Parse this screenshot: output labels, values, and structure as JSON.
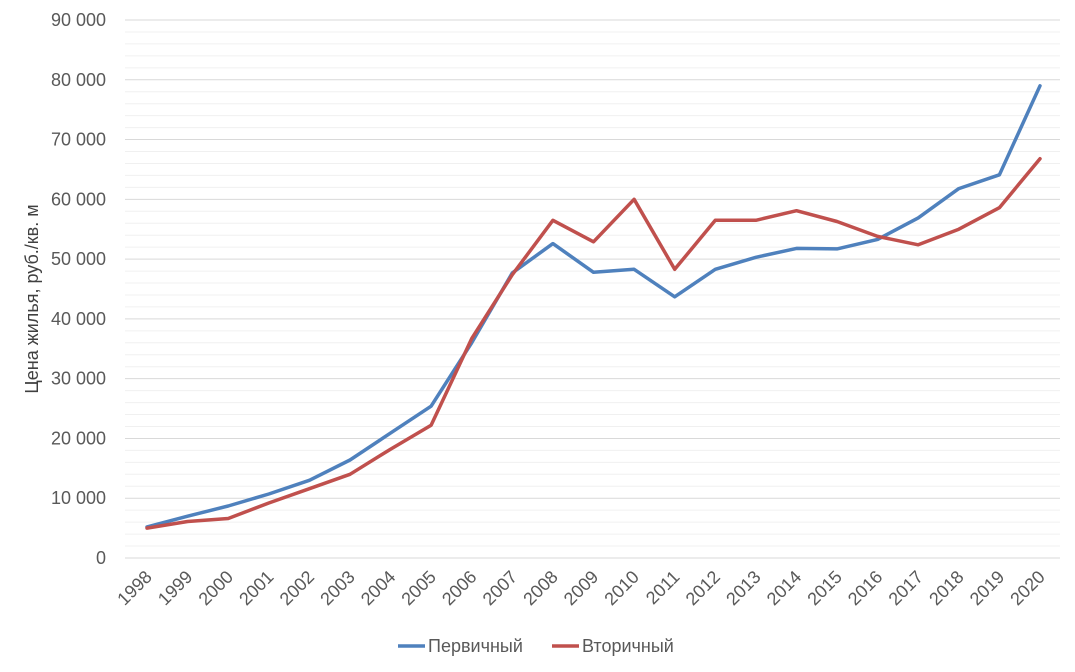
{
  "chart_data": {
    "type": "line",
    "title": "",
    "xlabel": "",
    "ylabel": "Цена жилья, руб./кв. м",
    "ylim": [
      0,
      90000
    ],
    "yticks": [
      0,
      10000,
      20000,
      30000,
      40000,
      50000,
      60000,
      70000,
      80000,
      90000
    ],
    "ytick_labels": [
      "0",
      "10 000",
      "20 000",
      "30 000",
      "40 000",
      "50 000",
      "60 000",
      "70 000",
      "80 000",
      "90 000"
    ],
    "grid": true,
    "legend_position": "bottom",
    "categories": [
      "1998",
      "1999",
      "2000",
      "2001",
      "2002",
      "2003",
      "2004",
      "2005",
      "2006",
      "2007",
      "2008",
      "2009",
      "2010",
      "2011",
      "2012",
      "2013",
      "2014",
      "2015",
      "2016",
      "2017",
      "2018",
      "2019",
      "2020"
    ],
    "series": [
      {
        "name": "Первичный",
        "color": "#4f81bd",
        "values": [
          5200,
          7000,
          8700,
          10700,
          13000,
          16400,
          20900,
          25400,
          36000,
          47700,
          52600,
          47800,
          48300,
          43700,
          48300,
          50300,
          51800,
          51700,
          53300,
          56900,
          61800,
          64100,
          79000
        ]
      },
      {
        "name": "Вторичный",
        "color": "#c0504d",
        "values": [
          5000,
          6100,
          6600,
          9200,
          11600,
          14000,
          18200,
          22200,
          36700,
          47400,
          56500,
          52900,
          60000,
          48300,
          56500,
          56500,
          58100,
          56300,
          53800,
          52400,
          55000,
          58600,
          66800
        ]
      }
    ]
  }
}
